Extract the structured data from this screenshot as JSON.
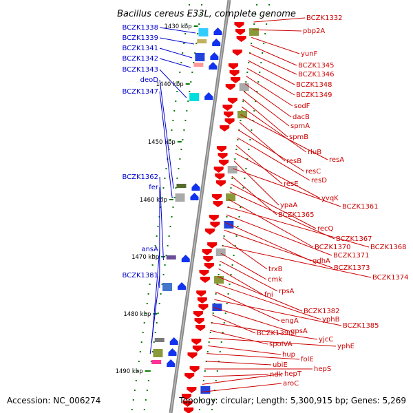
{
  "title": "Bacillus cereus E33L, complete genome",
  "footer": {
    "accession": "Accession: NC_006274",
    "topology": "Topology: circular; Length: 5,300,915 bp; Genes: 5,269"
  },
  "colors": {
    "forward": "#0000cc",
    "reverse": "#cc0000",
    "forward_fill": "#1133ee",
    "reverse_fill": "#ee0000",
    "tick": "#007700",
    "backbone": "#888888"
  },
  "ruler": [
    {
      "label": "1430 kbp"
    },
    {
      "label": "1440 kbp"
    },
    {
      "label": "1450 kbp"
    },
    {
      "label": "1460 kbp"
    },
    {
      "label": "1470 kbp"
    },
    {
      "label": "1480 kbp"
    },
    {
      "label": "1490 kbp"
    }
  ],
  "genes_forward": [
    {
      "name": "BCZK1338"
    },
    {
      "name": "BCZK1339"
    },
    {
      "name": "BCZK1341"
    },
    {
      "name": "BCZK1342"
    },
    {
      "name": "BCZK1343"
    },
    {
      "name": "deoD"
    },
    {
      "name": "BCZK1347"
    },
    {
      "name": "BCZK1362"
    },
    {
      "name": "fer"
    },
    {
      "name": "ansA"
    },
    {
      "name": "BCZK1381"
    }
  ],
  "genes_reverse": [
    {
      "name": "BCZK1332"
    },
    {
      "name": "pbp2A"
    },
    {
      "name": "yunF"
    },
    {
      "name": "BCZK1345"
    },
    {
      "name": "BCZK1346"
    },
    {
      "name": "BCZK1348"
    },
    {
      "name": "BCZK1349"
    },
    {
      "name": "sodF"
    },
    {
      "name": "dacB"
    },
    {
      "name": "spmA"
    },
    {
      "name": "spmB"
    },
    {
      "name": "rluB"
    },
    {
      "name": "resA"
    },
    {
      "name": "resB"
    },
    {
      "name": "resC"
    },
    {
      "name": "resD"
    },
    {
      "name": "resE"
    },
    {
      "name": "yvqK"
    },
    {
      "name": "ypaA"
    },
    {
      "name": "BCZK1361"
    },
    {
      "name": "BCZK1365"
    },
    {
      "name": "recQ"
    },
    {
      "name": "BCZK1367"
    },
    {
      "name": "BCZK1370"
    },
    {
      "name": "BCZK1368"
    },
    {
      "name": "BCZK1371"
    },
    {
      "name": "gdhA"
    },
    {
      "name": "BCZK1373"
    },
    {
      "name": "trxB"
    },
    {
      "name": "BCZK1374"
    },
    {
      "name": "cmk"
    },
    {
      "name": "rpsA"
    },
    {
      "name": "fni"
    },
    {
      "name": "BCZK1382"
    },
    {
      "name": "yphB"
    },
    {
      "name": "engA"
    },
    {
      "name": "BCZK1385"
    },
    {
      "name": "gpsA"
    },
    {
      "name": "BCZK1390"
    },
    {
      "name": "yjcC"
    },
    {
      "name": "spoIVA"
    },
    {
      "name": "yphE"
    },
    {
      "name": "hup"
    },
    {
      "name": "folE"
    },
    {
      "name": "ubiE"
    },
    {
      "name": "hepS"
    },
    {
      "name": "ndk"
    },
    {
      "name": "hepT"
    },
    {
      "name": "aroC"
    }
  ]
}
